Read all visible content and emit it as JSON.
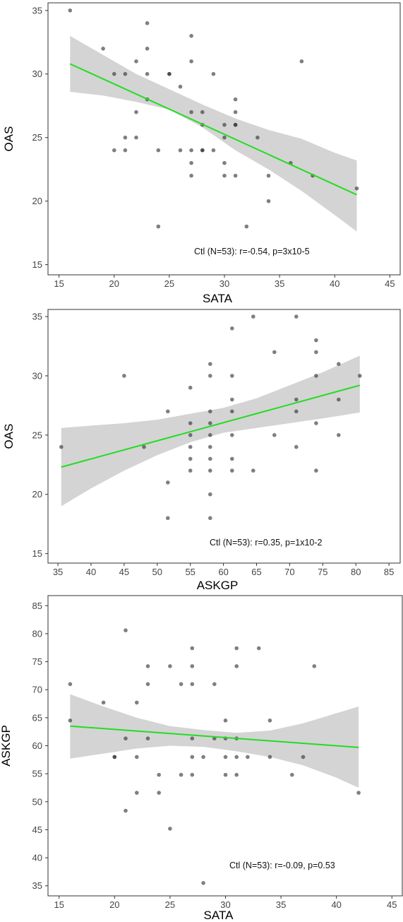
{
  "chart_data": [
    {
      "type": "scatter",
      "xlabel": "SATA",
      "ylabel": "OAS",
      "xlim": [
        14,
        46
      ],
      "ylim": [
        14.2,
        35.6
      ],
      "xticks": [
        15,
        20,
        25,
        30,
        35,
        40,
        45
      ],
      "yticks": [
        15,
        20,
        25,
        30,
        35
      ],
      "annotation": "Ctl (N=53): r=-0.54, p=3x10-5",
      "fit": {
        "x": [
          16,
          42
        ],
        "y": [
          30.8,
          20.5
        ]
      },
      "band": {
        "x": [
          16,
          19,
          22,
          25,
          28,
          31,
          34,
          37,
          40,
          42
        ],
        "lower": [
          28.6,
          28.3,
          27.8,
          27.2,
          25.8,
          24.0,
          22.5,
          20.8,
          18.9,
          17.6
        ],
        "upper": [
          33.0,
          31.5,
          30.0,
          28.8,
          27.6,
          26.5,
          25.6,
          24.9,
          23.8,
          23.2
        ]
      },
      "points": [
        {
          "x": 16,
          "y": 35
        },
        {
          "x": 19,
          "y": 32
        },
        {
          "x": 20,
          "y": 30
        },
        {
          "x": 20,
          "y": 24
        },
        {
          "x": 21,
          "y": 30
        },
        {
          "x": 21,
          "y": 25
        },
        {
          "x": 21,
          "y": 24
        },
        {
          "x": 22,
          "y": 31
        },
        {
          "x": 22,
          "y": 27
        },
        {
          "x": 22,
          "y": 25
        },
        {
          "x": 23,
          "y": 34
        },
        {
          "x": 23,
          "y": 32
        },
        {
          "x": 23,
          "y": 30
        },
        {
          "x": 23,
          "y": 28
        },
        {
          "x": 24,
          "y": 24
        },
        {
          "x": 24,
          "y": 18
        },
        {
          "x": 25,
          "y": 30
        },
        {
          "x": 25,
          "y": 30
        },
        {
          "x": 26,
          "y": 29
        },
        {
          "x": 26,
          "y": 24
        },
        {
          "x": 27,
          "y": 33
        },
        {
          "x": 27,
          "y": 31
        },
        {
          "x": 27,
          "y": 27
        },
        {
          "x": 27,
          "y": 24
        },
        {
          "x": 27,
          "y": 23
        },
        {
          "x": 27,
          "y": 22
        },
        {
          "x": 28,
          "y": 27
        },
        {
          "x": 28,
          "y": 26
        },
        {
          "x": 28,
          "y": 24
        },
        {
          "x": 28,
          "y": 24
        },
        {
          "x": 29,
          "y": 30
        },
        {
          "x": 29,
          "y": 24
        },
        {
          "x": 30,
          "y": 26
        },
        {
          "x": 30,
          "y": 25
        },
        {
          "x": 30,
          "y": 23
        },
        {
          "x": 30,
          "y": 22
        },
        {
          "x": 31,
          "y": 28
        },
        {
          "x": 31,
          "y": 27
        },
        {
          "x": 31,
          "y": 26
        },
        {
          "x": 31,
          "y": 26
        },
        {
          "x": 31,
          "y": 22
        },
        {
          "x": 32,
          "y": 18
        },
        {
          "x": 33,
          "y": 25
        },
        {
          "x": 34,
          "y": 22
        },
        {
          "x": 34,
          "y": 20
        },
        {
          "x": 36,
          "y": 23
        },
        {
          "x": 37,
          "y": 31
        },
        {
          "x": 38,
          "y": 22
        },
        {
          "x": 42,
          "y": 21
        }
      ]
    },
    {
      "type": "scatter",
      "xlabel": "ASKGP",
      "ylabel": "OAS",
      "xlim": [
        33.5,
        86.8
      ],
      "ylim": [
        14.2,
        35.6
      ],
      "xticks": [
        35,
        40,
        45,
        50,
        55,
        60,
        65,
        70,
        75,
        80,
        85
      ],
      "yticks": [
        15,
        20,
        25,
        30,
        35
      ],
      "annotation": "Ctl (N=53): r=0.35, p=1x10-2",
      "fit": {
        "x": [
          35.5,
          80.6
        ],
        "y": [
          22.3,
          29.2
        ]
      },
      "band": {
        "x": [
          35.5,
          40,
          45,
          50,
          55,
          60,
          65,
          70,
          75,
          80.6
        ],
        "lower": [
          19.0,
          20.5,
          22.0,
          23.3,
          24.4,
          25.2,
          25.6,
          26.0,
          26.4,
          26.9
        ],
        "upper": [
          25.6,
          25.8,
          26.0,
          26.3,
          26.8,
          27.3,
          28.1,
          29.2,
          30.3,
          31.7
        ]
      },
      "points": [
        {
          "x": 35.5,
          "y": 24
        },
        {
          "x": 45,
          "y": 30
        },
        {
          "x": 48,
          "y": 24
        },
        {
          "x": 51.6,
          "y": 27
        },
        {
          "x": 51.6,
          "y": 21
        },
        {
          "x": 51.6,
          "y": 18
        },
        {
          "x": 55,
          "y": 29
        },
        {
          "x": 55,
          "y": 26
        },
        {
          "x": 55,
          "y": 25
        },
        {
          "x": 55,
          "y": 24
        },
        {
          "x": 55,
          "y": 23
        },
        {
          "x": 55,
          "y": 22
        },
        {
          "x": 58,
          "y": 31
        },
        {
          "x": 58,
          "y": 30
        },
        {
          "x": 58,
          "y": 27
        },
        {
          "x": 58,
          "y": 26
        },
        {
          "x": 58,
          "y": 25
        },
        {
          "x": 58,
          "y": 24
        },
        {
          "x": 58,
          "y": 23
        },
        {
          "x": 58,
          "y": 22
        },
        {
          "x": 58,
          "y": 20
        },
        {
          "x": 58,
          "y": 18
        },
        {
          "x": 61.3,
          "y": 34
        },
        {
          "x": 61.3,
          "y": 30
        },
        {
          "x": 61.3,
          "y": 28
        },
        {
          "x": 61.3,
          "y": 27
        },
        {
          "x": 61.3,
          "y": 25
        },
        {
          "x": 61.3,
          "y": 23
        },
        {
          "x": 61.3,
          "y": 22
        },
        {
          "x": 64.5,
          "y": 35
        },
        {
          "x": 64.5,
          "y": 22
        },
        {
          "x": 67.7,
          "y": 32
        },
        {
          "x": 67.7,
          "y": 25
        },
        {
          "x": 71,
          "y": 35
        },
        {
          "x": 71,
          "y": 28
        },
        {
          "x": 71,
          "y": 27
        },
        {
          "x": 71,
          "y": 24
        },
        {
          "x": 74,
          "y": 33
        },
        {
          "x": 74,
          "y": 32
        },
        {
          "x": 74,
          "y": 30
        },
        {
          "x": 74,
          "y": 26
        },
        {
          "x": 74,
          "y": 22
        },
        {
          "x": 77.4,
          "y": 31
        },
        {
          "x": 77.4,
          "y": 28
        },
        {
          "x": 77.4,
          "y": 25
        },
        {
          "x": 80.6,
          "y": 30
        }
      ]
    },
    {
      "type": "scatter",
      "xlabel": "SATA",
      "ylabel": "ASKGP",
      "xlim": [
        14,
        46
      ],
      "ylim": [
        33.2,
        86.8
      ],
      "xticks": [
        15,
        20,
        25,
        30,
        35,
        40,
        45
      ],
      "yticks": [
        35,
        40,
        45,
        50,
        55,
        60,
        65,
        70,
        75,
        80,
        85
      ],
      "annotation": "Ctl (N=53): r=-0.09, p=0.53",
      "fit": {
        "x": [
          16,
          42
        ],
        "y": [
          63.5,
          59.7
        ]
      },
      "band": {
        "x": [
          16,
          19,
          22,
          25,
          28,
          31,
          34,
          37,
          40,
          42
        ],
        "lower": [
          57.7,
          58.6,
          59.5,
          60.0,
          59.8,
          59.0,
          58.0,
          56.5,
          54.3,
          52.5
        ],
        "upper": [
          69.2,
          67.0,
          65.0,
          63.5,
          62.8,
          62.3,
          62.7,
          64.0,
          65.8,
          67.0
        ]
      },
      "points": [
        {
          "x": 16,
          "y": 71
        },
        {
          "x": 16,
          "y": 64.5
        },
        {
          "x": 19,
          "y": 67.7
        },
        {
          "x": 20,
          "y": 58
        },
        {
          "x": 20,
          "y": 58
        },
        {
          "x": 21,
          "y": 80.6
        },
        {
          "x": 21,
          "y": 61.3
        },
        {
          "x": 21,
          "y": 48.4
        },
        {
          "x": 22,
          "y": 67.7
        },
        {
          "x": 22,
          "y": 58
        },
        {
          "x": 22,
          "y": 51.6
        },
        {
          "x": 23,
          "y": 74.2
        },
        {
          "x": 23,
          "y": 71
        },
        {
          "x": 23,
          "y": 61.3
        },
        {
          "x": 24,
          "y": 54.8
        },
        {
          "x": 24,
          "y": 51.6
        },
        {
          "x": 25,
          "y": 74.2
        },
        {
          "x": 25,
          "y": 45.2
        },
        {
          "x": 26,
          "y": 71
        },
        {
          "x": 26,
          "y": 54.8
        },
        {
          "x": 27,
          "y": 77.4
        },
        {
          "x": 27,
          "y": 74.2
        },
        {
          "x": 27,
          "y": 71
        },
        {
          "x": 27,
          "y": 61.3
        },
        {
          "x": 27,
          "y": 58
        },
        {
          "x": 27,
          "y": 54.8
        },
        {
          "x": 28,
          "y": 58
        },
        {
          "x": 28,
          "y": 35.5
        },
        {
          "x": 29,
          "y": 71
        },
        {
          "x": 29,
          "y": 61.3
        },
        {
          "x": 30,
          "y": 64.5
        },
        {
          "x": 30,
          "y": 61.3
        },
        {
          "x": 30,
          "y": 58
        },
        {
          "x": 30,
          "y": 54.8
        },
        {
          "x": 31,
          "y": 77.4
        },
        {
          "x": 31,
          "y": 74.2
        },
        {
          "x": 31,
          "y": 61.3
        },
        {
          "x": 31,
          "y": 58
        },
        {
          "x": 31,
          "y": 54.8
        },
        {
          "x": 32,
          "y": 58
        },
        {
          "x": 33,
          "y": 77.4
        },
        {
          "x": 34,
          "y": 64.5
        },
        {
          "x": 34,
          "y": 58
        },
        {
          "x": 36,
          "y": 54.8
        },
        {
          "x": 37,
          "y": 58
        },
        {
          "x": 38,
          "y": 74.2
        },
        {
          "x": 42,
          "y": 51.6
        }
      ]
    }
  ]
}
